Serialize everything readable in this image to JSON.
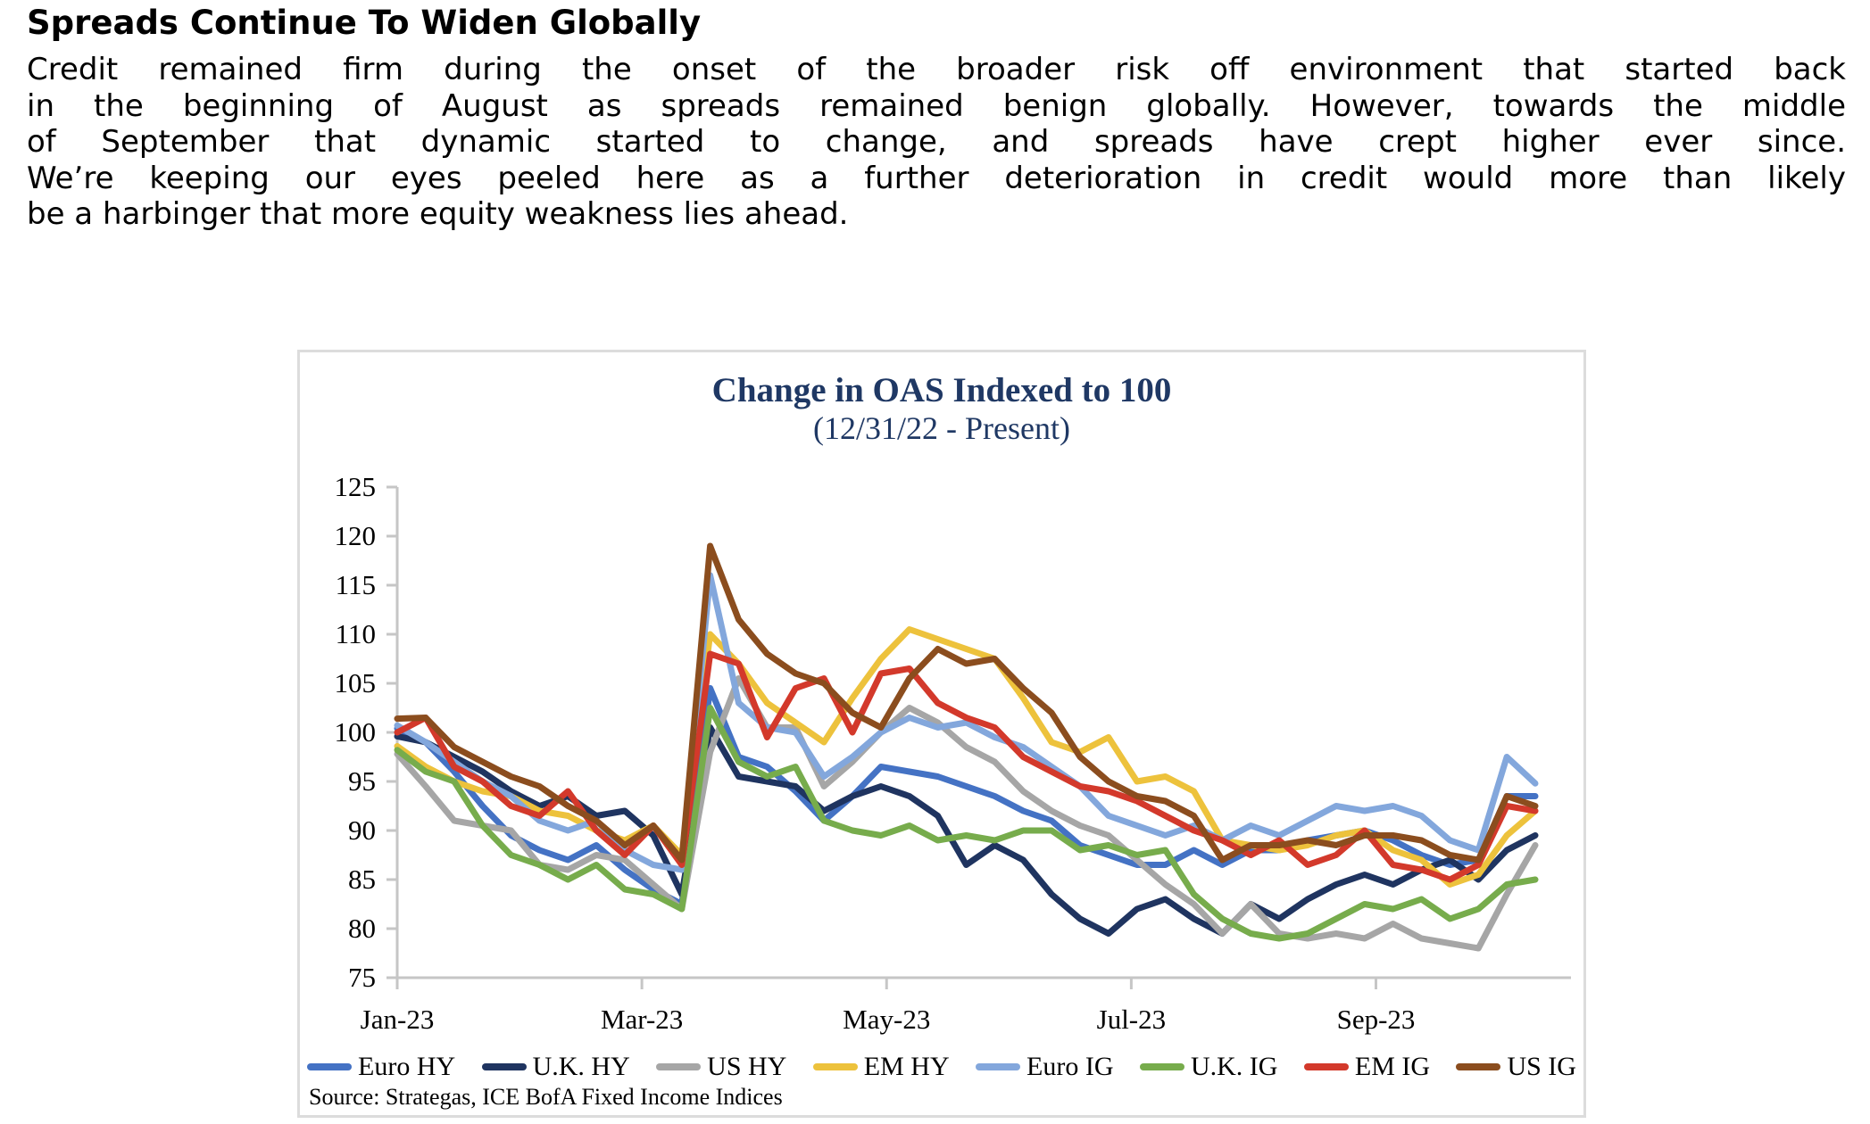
{
  "page": {
    "heading": "Spreads Continue To Widen Globally",
    "intro_lines": [
      "Credit remained firm during the onset of the broader risk off environment that started back",
      "in the beginning of August as spreads remained benign globally. However, towards the middle",
      "of September that dynamic started to change, and spreads have crept higher ever since.",
      "We’re keeping our eyes peeled here as a further deterioration in credit would more than likely",
      "be a harbinger that more equity weakness lies ahead."
    ]
  },
  "chart": {
    "title": "Change in OAS Indexed to 100",
    "subtitle": "(12/31/22 - Present)",
    "source": "Source: Strategas, ICE BofA Fixed Income Indices",
    "title_color": "#1F3864",
    "axis_color": "#C6C6C6"
  },
  "chart_data": {
    "type": "line",
    "title": "Change in OAS Indexed to 100",
    "subtitle": "(12/31/22 - Present)",
    "xlabel": "",
    "ylabel": "",
    "ylim": [
      75,
      125
    ],
    "y_ticks": [
      75,
      80,
      85,
      90,
      95,
      100,
      105,
      110,
      115,
      120,
      125
    ],
    "x_tick_labels": [
      "Jan-23",
      "Mar-23",
      "May-23",
      "Jul-23",
      "Sep-23"
    ],
    "x_tick_weeks": [
      0,
      8.6,
      17.2,
      25.8,
      34.4
    ],
    "x_total_weeks": 40,
    "x_unit": "weeks since 12/31/2022",
    "grid": false,
    "legend_position": "bottom",
    "series": [
      {
        "name": "Euro HY",
        "color": "#4472C4",
        "values": [
          100.4,
          99,
          96,
          92.5,
          89.5,
          88,
          87,
          88.5,
          86,
          84,
          82.5,
          104.5,
          97.5,
          96.5,
          94,
          91,
          93.5,
          96.5,
          96,
          95.5,
          94.5,
          93.5,
          92,
          91,
          88.5,
          87.5,
          86.5,
          86.5,
          88,
          86.5,
          88,
          88,
          89,
          89.5,
          90,
          89,
          87.5,
          86.5,
          87,
          93.5,
          93.5
        ]
      },
      {
        "name": "U.K. HY",
        "color": "#1F3460",
        "values": [
          99.6,
          99,
          97.5,
          96,
          94,
          92.5,
          93.5,
          91.5,
          92,
          89.5,
          83.5,
          100.5,
          95.5,
          95,
          94.5,
          92,
          93.5,
          94.5,
          93.5,
          91.5,
          86.5,
          88.5,
          87,
          83.5,
          81,
          79.5,
          82,
          83,
          81,
          79.5,
          82.5,
          81,
          83,
          84.5,
          85.5,
          84.5,
          86,
          87,
          85,
          88,
          89.5
        ]
      },
      {
        "name": "US HY",
        "color": "#A6A6A6",
        "values": [
          97.8,
          94.5,
          91,
          90.5,
          90,
          86.5,
          86,
          87.5,
          87,
          84.5,
          82,
          98,
          105.5,
          100.5,
          100.5,
          94.5,
          97,
          100,
          102.5,
          101,
          98.5,
          97,
          94,
          92,
          90.5,
          89.5,
          87,
          84.5,
          82.5,
          79.5,
          82.5,
          79.5,
          79,
          79.5,
          79,
          80.5,
          79,
          78.5,
          78,
          83.5,
          88.5
        ]
      },
      {
        "name": "EM HY",
        "color": "#EDC23C",
        "values": [
          98.6,
          96.5,
          95,
          94,
          93.5,
          92,
          91.5,
          90,
          89,
          90.5,
          87.5,
          110,
          107,
          103,
          101,
          99,
          103.5,
          107.5,
          110.5,
          109.5,
          108.5,
          107.5,
          103.5,
          99,
          98,
          99.5,
          95,
          95.5,
          94,
          89,
          88.5,
          88,
          88.5,
          89.5,
          90,
          88,
          87,
          84.5,
          85.5,
          89.5,
          92
        ]
      },
      {
        "name": "Euro IG",
        "color": "#83A7DC",
        "values": [
          100.7,
          99,
          97,
          95,
          93.5,
          91,
          90,
          91,
          88,
          86.5,
          86,
          116,
          103,
          100.5,
          100,
          95.5,
          97.5,
          100,
          101.5,
          100.5,
          101,
          99.5,
          98.5,
          96.5,
          94.5,
          91.5,
          90.5,
          89.5,
          90.5,
          89,
          90.5,
          89.5,
          91,
          92.5,
          92,
          92.5,
          91.5,
          89,
          88,
          97.5,
          94.8
        ]
      },
      {
        "name": "U.K. IG",
        "color": "#77AC4C",
        "values": [
          98.2,
          96,
          95,
          90.5,
          87.5,
          86.5,
          85,
          86.5,
          84,
          83.5,
          82,
          102.5,
          97,
          95.5,
          96.5,
          91,
          90,
          89.5,
          90.5,
          89,
          89.5,
          89,
          90,
          90,
          88,
          88.5,
          87.5,
          88,
          83.5,
          81,
          79.5,
          79,
          79.5,
          81,
          82.5,
          82,
          83,
          81,
          82,
          84.5,
          85
        ]
      },
      {
        "name": "EM IG",
        "color": "#D3392B",
        "values": [
          100,
          101.5,
          96.5,
          95,
          92.5,
          91.5,
          94,
          90,
          87.5,
          90.5,
          86.5,
          108,
          107,
          99.5,
          104.5,
          105.5,
          100,
          106,
          106.5,
          103,
          101.5,
          100.5,
          97.5,
          96,
          94.5,
          94,
          93,
          91.5,
          90,
          89,
          87.5,
          89,
          86.5,
          87.5,
          90,
          86.5,
          86,
          85,
          86.5,
          92.5,
          92
        ]
      },
      {
        "name": "US IG",
        "color": "#8B4D1E",
        "values": [
          101.4,
          101.5,
          98.5,
          97,
          95.5,
          94.5,
          92.5,
          91,
          88.5,
          90.5,
          87,
          119,
          111.5,
          108,
          106,
          105,
          102,
          100.5,
          105.5,
          108.5,
          107,
          107.5,
          104.5,
          102,
          97.5,
          95,
          93.5,
          93,
          91.5,
          87,
          88.5,
          88.5,
          89,
          88.5,
          89.5,
          89.5,
          89,
          87.5,
          87,
          93.5,
          92.5
        ]
      }
    ]
  }
}
